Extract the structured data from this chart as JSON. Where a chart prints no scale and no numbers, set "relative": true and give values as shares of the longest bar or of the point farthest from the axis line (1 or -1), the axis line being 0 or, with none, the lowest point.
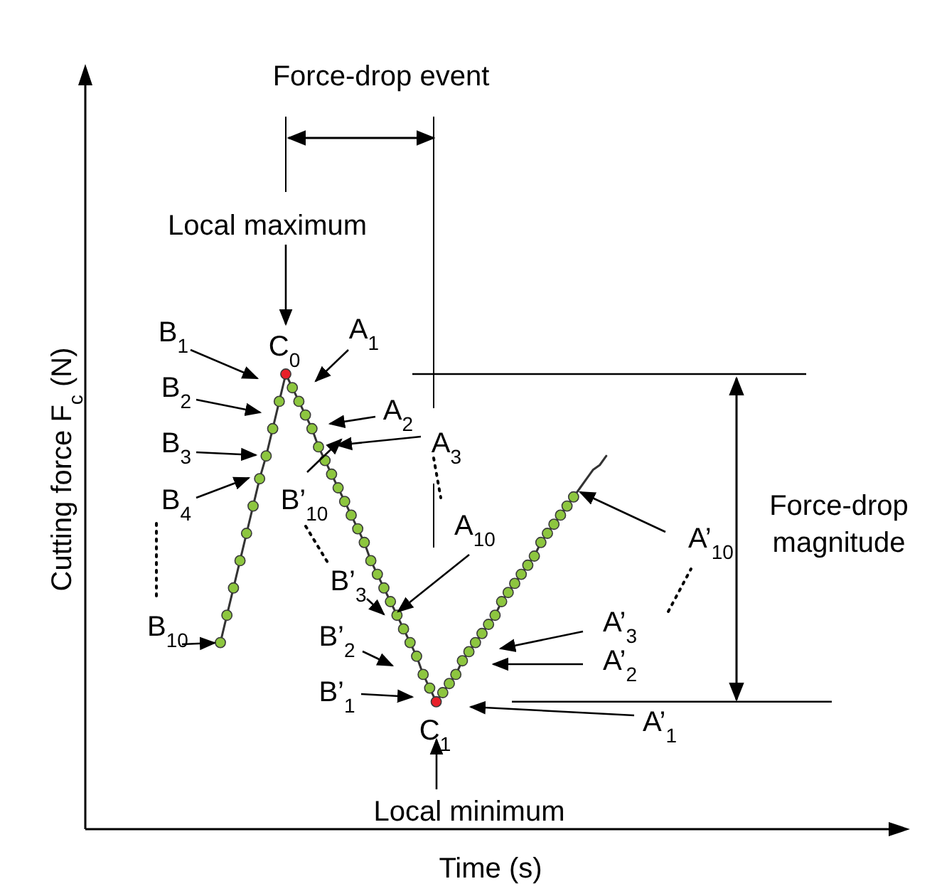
{
  "chart_data": {
    "type": "line",
    "relative": true,
    "tick_labels": false,
    "marker": "circle",
    "xlabel": "Time (s)",
    "ylabel": "Cutting force F$_{c}$ (N)",
    "categories": [
      null,
      null,
      null,
      null,
      null,
      null,
      null,
      null,
      null,
      null,
      null,
      null,
      null,
      null,
      null,
      null,
      null,
      null,
      null,
      null,
      null,
      null,
      null,
      null,
      null,
      null,
      null,
      null,
      null,
      null,
      null,
      null,
      null,
      null,
      null,
      null,
      null,
      null,
      null,
      null,
      null,
      null,
      null,
      null,
      null,
      null,
      null,
      null,
      null,
      null,
      null,
      null,
      null,
      null,
      null,
      null,
      null,
      null,
      null,
      null
    ],
    "series": [
      {
        "color": "#333333",
        "colors": [
          "#8dc63f",
          "#8dc63f",
          "#8dc63f",
          "#8dc63f",
          "#8dc63f",
          "#8dc63f",
          "#8dc63f",
          "#8dc63f",
          "#8dc63f",
          "#8dc63f",
          "#e8202a",
          "#8dc63f",
          "#8dc63f",
          "#8dc63f",
          "#8dc63f",
          "#8dc63f",
          "#8dc63f",
          "#8dc63f",
          "#8dc63f",
          "#8dc63f",
          "#8dc63f",
          "#8dc63f",
          "#8dc63f",
          "#8dc63f",
          "#8dc63f",
          "#8dc63f",
          "#8dc63f",
          "#8dc63f",
          "#8dc63f",
          "#8dc63f",
          "#8dc63f",
          "#8dc63f",
          "#8dc63f",
          "#e8202a",
          "#8dc63f",
          "#8dc63f",
          "#8dc63f",
          "#8dc63f",
          "#8dc63f",
          "#8dc63f",
          "#8dc63f",
          "#8dc63f",
          "#8dc63f",
          "#8dc63f",
          "#8dc63f",
          "#8dc63f",
          "#8dc63f",
          "#8dc63f",
          "#8dc63f",
          "#8dc63f",
          "#8dc63f",
          "#8dc63f",
          "#8dc63f",
          "#8dc63f",
          "#8dc63f",
          null,
          null,
          null,
          null,
          null
        ],
        "values": [
          0.41,
          0.47,
          0.53,
          0.59,
          0.65,
          0.71,
          0.77,
          0.82,
          0.88,
          0.94,
          1.0,
          0.97,
          0.94,
          0.91,
          0.88,
          0.84,
          0.81,
          0.78,
          0.75,
          0.72,
          0.69,
          0.66,
          0.63,
          0.59,
          0.56,
          0.53,
          0.5,
          0.47,
          0.44,
          0.41,
          0.38,
          0.34,
          0.31,
          0.28,
          0.3,
          0.32,
          0.34,
          0.37,
          0.39,
          0.41,
          0.43,
          0.45,
          0.47,
          0.5,
          0.52,
          0.54,
          0.56,
          0.58,
          0.6,
          0.63,
          0.65,
          0.67,
          0.69,
          0.71,
          0.73,
          0.75,
          0.77,
          0.79,
          0.8,
          0.82
        ]
      }
    ],
    "ref_lines": [
      {
        "axis": "y",
        "value": 1.0
      },
      {
        "axis": "y",
        "value": 0.28
      }
    ],
    "annotations": [
      "Force-drop event",
      "Local maximum",
      "Local minimum",
      "Force-drop magnitude",
      "C$_{0}$",
      "B$_{1}$",
      "B$_{2}$",
      "B$_{3}$",
      "B$_{4}$",
      "B$_{10}$",
      "A$_{1}$",
      "A$_{2}$",
      "A$_{3}$",
      "A$_{10}$",
      "B’$_{10}$",
      "B’$_{3}$",
      "B’$_{2}$",
      "B’$_{1}$",
      "C$_{1}$",
      "A’$_{1}$",
      "A’$_{2}$",
      "A’$_{3}$",
      "A’$_{10}$"
    ]
  }
}
